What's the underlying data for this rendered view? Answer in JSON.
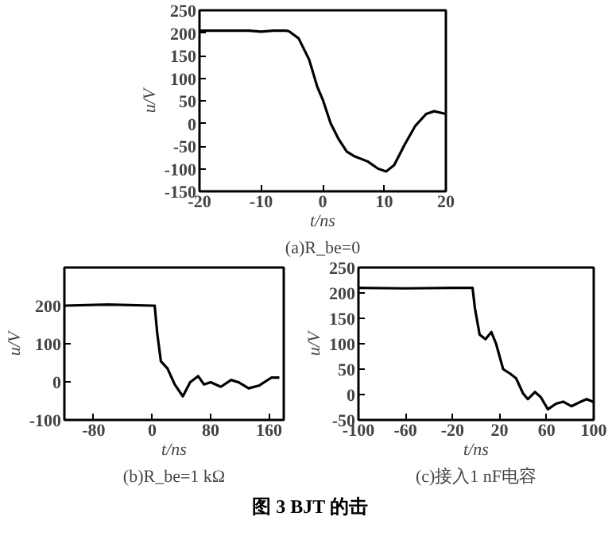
{
  "chart_data": [
    {
      "type": "line",
      "subtitle": "(a)R_be=0",
      "xlabel": "t/ns",
      "ylabel": "u/V",
      "xlim": [
        -20,
        20
      ],
      "ylim": [
        -150,
        250
      ],
      "xticks": [
        -20,
        -10,
        0,
        10,
        20
      ],
      "yticks": [
        -150,
        -100,
        -50,
        0,
        50,
        100,
        150,
        200,
        250
      ],
      "grid": false,
      "series": [
        {
          "color": "#000000",
          "x": [
            -20,
            -12,
            -10,
            -8,
            -6,
            -5.5,
            -3.9,
            -2.2,
            -0.9,
            0,
            1.3,
            2.6,
            3.9,
            5.2,
            7.3,
            9,
            10.3,
            11.6,
            13.3,
            15,
            16.8,
            18.1,
            20
          ],
          "values": [
            205,
            205,
            203,
            205,
            205,
            204,
            188,
            141,
            82,
            53,
            0,
            -35,
            -62,
            -73,
            -84,
            -100,
            -106,
            -92,
            -47,
            -6,
            21,
            27,
            21
          ]
        }
      ]
    },
    {
      "type": "line",
      "subtitle": "(b)R_be=1 kΩ",
      "xlabel": "t/ns",
      "ylabel": "u/V",
      "xlim": [
        -120,
        180
      ],
      "ylim": [
        -100,
        300
      ],
      "xticks": [
        -80,
        0,
        80,
        160
      ],
      "yticks": [
        -100,
        0,
        100,
        200
      ],
      "grid": false,
      "series": [
        {
          "color": "#000000",
          "x": [
            -120,
            -60,
            0,
            3.5,
            7,
            12,
            21,
            31,
            42,
            52,
            63,
            71,
            80,
            94,
            108,
            118,
            132,
            146,
            163,
            174
          ],
          "values": [
            200,
            203,
            200,
            200,
            127,
            54,
            35,
            -7,
            -38,
            -1,
            15,
            -7,
            -1,
            -13,
            5,
            -1,
            -17,
            -10,
            11,
            11
          ]
        }
      ]
    },
    {
      "type": "line",
      "subtitle": "(c)接入1 nF电容",
      "xlabel": "t/ns",
      "ylabel": "u/V",
      "xlim": [
        -100,
        100
      ],
      "ylim": [
        -50,
        250
      ],
      "xticks": [
        -100,
        -60,
        -20,
        20,
        60,
        100
      ],
      "yticks": [
        -50,
        0,
        50,
        100,
        150,
        200,
        250
      ],
      "grid": false,
      "annotations": [
        "图 3  BJT 的击"
      ],
      "series": [
        {
          "color": "#000000",
          "x": [
            -100,
            -60,
            -20,
            -3,
            -1,
            3,
            8,
            13,
            17,
            23,
            29,
            34,
            40,
            44,
            50,
            55,
            61,
            68,
            74,
            81,
            89,
            94,
            100
          ],
          "values": [
            210,
            209,
            210,
            210,
            170,
            118,
            109,
            123,
            100,
            50,
            41,
            32,
            2,
            -9,
            5,
            -5,
            -29,
            -18,
            -14,
            -23,
            -14,
            -9,
            -15
          ]
        }
      ]
    }
  ]
}
